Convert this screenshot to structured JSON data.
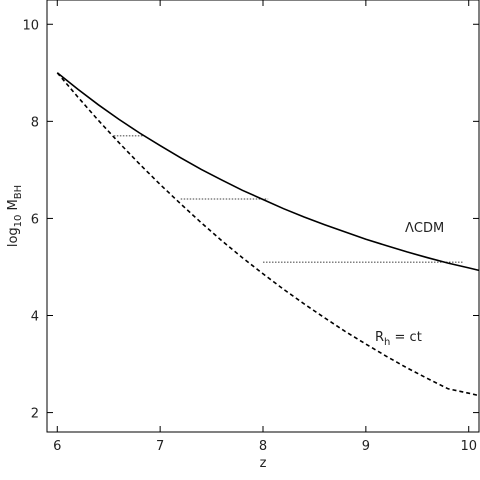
{
  "chart_data": {
    "type": "line",
    "title": "",
    "xlabel": "z",
    "ylabel_main": "log",
    "ylabel_sub1": "10",
    "ylabel_mid": " M",
    "ylabel_sub2": "BH",
    "xlim": [
      5.9,
      10.1
    ],
    "ylim": [
      1.6,
      10.5
    ],
    "xticks": [
      6,
      7,
      8,
      9,
      10
    ],
    "yticks": [
      2,
      4,
      6,
      8,
      10
    ],
    "grid": false,
    "series": [
      {
        "name": "ΛCDM",
        "style": "solid",
        "x": [
          6.0,
          6.2,
          6.4,
          6.6,
          6.8,
          7.0,
          7.2,
          7.4,
          7.6,
          7.8,
          8.0,
          8.2,
          8.4,
          8.6,
          8.8,
          9.0,
          9.2,
          9.4,
          9.6,
          9.8,
          10.0,
          10.1
        ],
        "y": [
          9.0,
          8.66,
          8.34,
          8.04,
          7.76,
          7.5,
          7.25,
          7.01,
          6.79,
          6.58,
          6.39,
          6.2,
          6.03,
          5.87,
          5.72,
          5.57,
          5.44,
          5.31,
          5.19,
          5.08,
          4.98,
          4.93
        ]
      },
      {
        "name": "R_h = ct",
        "style": "dashed",
        "x": [
          6.0,
          6.2,
          6.4,
          6.6,
          6.8,
          7.0,
          7.2,
          7.4,
          7.6,
          7.8,
          8.0,
          8.2,
          8.4,
          8.6,
          8.8,
          9.0,
          9.2,
          9.4,
          9.6,
          9.8,
          10.0,
          10.1
        ],
        "y": [
          9.0,
          8.5,
          8.02,
          7.56,
          7.12,
          6.7,
          6.3,
          5.91,
          5.54,
          5.19,
          4.86,
          4.54,
          4.24,
          3.95,
          3.67,
          3.41,
          3.16,
          2.92,
          2.7,
          2.49,
          2.4,
          2.35
        ]
      }
    ],
    "connectors": [
      {
        "x1": 6.55,
        "x2": 6.87,
        "y": 7.7
      },
      {
        "x1": 7.2,
        "x2": 8.05,
        "y": 6.4
      },
      {
        "x1": 8.0,
        "x2": 9.95,
        "y": 5.1
      }
    ],
    "annotations": [
      {
        "text": "ΛCDM",
        "x": 9.55,
        "y": 5.8
      },
      {
        "label_main": "R",
        "label_sub": "h",
        "label_rest": " = ct",
        "x": 9.25,
        "y": 3.55
      }
    ]
  }
}
